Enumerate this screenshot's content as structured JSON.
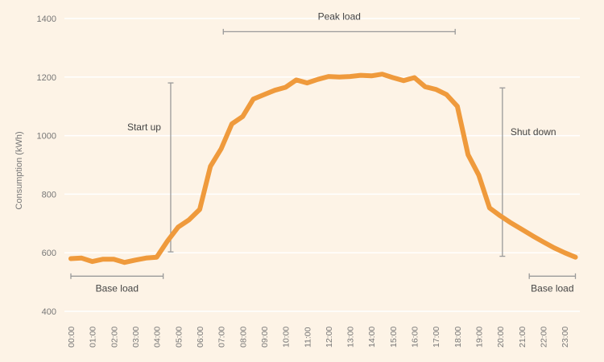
{
  "chart_data": {
    "type": "line",
    "title": "",
    "xlabel": "",
    "ylabel": "Consumption (kWh)",
    "ylim": [
      400,
      1400
    ],
    "yticks": [
      400,
      600,
      800,
      1000,
      1200,
      1400
    ],
    "xlim": [
      0,
      23.5
    ],
    "xticks": [
      "00:00",
      "01:00",
      "02:00",
      "03:00",
      "04:00",
      "05:00",
      "06:00",
      "07:00",
      "08:00",
      "09:00",
      "10:00",
      "11:00",
      "12:00",
      "13:00",
      "14:00",
      "15:00",
      "16:00",
      "17:00",
      "18:00",
      "19:00",
      "20:00",
      "21:00",
      "22:00",
      "23:00"
    ],
    "grid": true,
    "series": [
      {
        "name": "",
        "color": "#ef9a3c",
        "x": [
          0,
          0.5,
          1,
          1.5,
          2,
          2.5,
          3,
          3.5,
          4,
          4.5,
          5,
          5.5,
          6,
          6.5,
          7,
          7.5,
          8,
          8.5,
          9,
          9.5,
          10,
          10.5,
          11,
          11.5,
          12,
          12.5,
          13,
          13.5,
          14,
          14.5,
          15,
          15.5,
          16,
          16.5,
          17,
          17.5,
          18,
          18.5,
          19,
          19.5,
          20,
          20.5,
          21,
          21.5,
          22,
          22.5,
          23,
          23.5
        ],
        "values": [
          580,
          582,
          570,
          578,
          578,
          567,
          575,
          582,
          585,
          640,
          688,
          712,
          748,
          895,
          955,
          1040,
          1065,
          1125,
          1140,
          1155,
          1165,
          1190,
          1180,
          1192,
          1202,
          1200,
          1202,
          1206,
          1204,
          1210,
          1198,
          1188,
          1198,
          1167,
          1158,
          1140,
          1100,
          935,
          865,
          753,
          726,
          702,
          680,
          658,
          637,
          617,
          600,
          585
        ]
      }
    ],
    "annotations": [
      {
        "label": "Peak load",
        "orientation": "horizontal",
        "from": 7.1,
        "to": 17.9,
        "at": 1355
      },
      {
        "label": "Start up",
        "orientation": "vertical",
        "from": 603,
        "to": 1180,
        "at": 4.65
      },
      {
        "label": "Shut down",
        "orientation": "vertical",
        "from": 588,
        "to": 1163,
        "at": 20.1
      },
      {
        "label": "Base load",
        "orientation": "horizontal",
        "from": 0,
        "to": 4.3,
        "at": 520
      },
      {
        "label": "Base load",
        "orientation": "horizontal",
        "from": 21.35,
        "to": 23.5,
        "at": 520
      }
    ]
  }
}
